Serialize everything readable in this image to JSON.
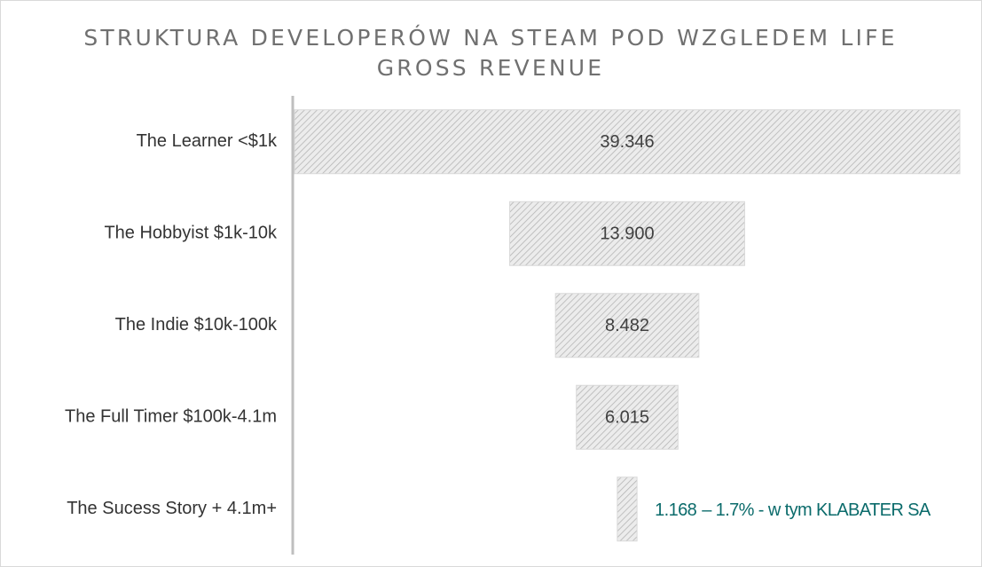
{
  "chart_data": {
    "type": "funnel",
    "title": "STRUKTURA DEVELOPERÓW NA STEAM POD WZGLEDEM LIFE GROSS REVENUE",
    "categories": [
      "The Learner <$1k",
      "The Hobbyist $1k-10k",
      "The Indie $10k-100k",
      "The Full Timer $100k-4.1m",
      "The Sucess Story + 4.1m+"
    ],
    "values": [
      39346,
      13900,
      8482,
      6015,
      1168
    ],
    "value_labels": [
      "39.346",
      "13.900",
      "8.482",
      "6.015",
      "1.168"
    ],
    "annotation": "– 1.7% - w tym KLABATER SA",
    "color": "#d9d9d9",
    "annotation_color": "#0b6b6b"
  }
}
